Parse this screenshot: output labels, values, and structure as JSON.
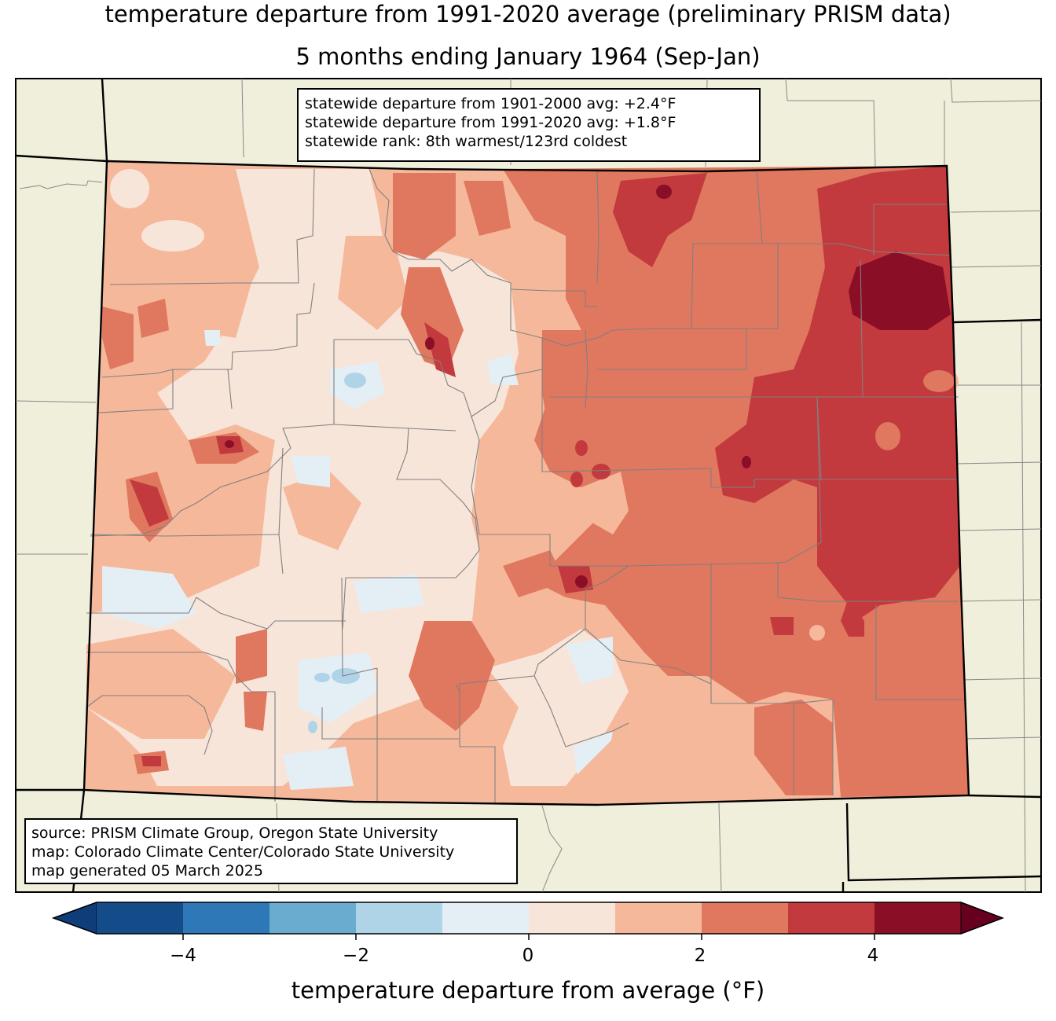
{
  "title_line1": "temperature departure from 1991-2020 average (preliminary PRISM data)",
  "title_line2": "5 months ending January 1964 (Sep-Jan)",
  "stats": {
    "line1": "statewide departure from 1901-2000 avg: +2.4°F",
    "line2": "statewide departure from 1991-2020 avg: +1.8°F",
    "line3": "statewide rank: 8th warmest/123rd coldest"
  },
  "source": {
    "line1": "source: PRISM Climate Group, Oregon State University",
    "line2": "map: Colorado Climate Center/Colorado State University",
    "line3": "map generated 05 March 2025"
  },
  "colorbar": {
    "label": "temperature departure from average (°F)",
    "ticks": [
      "−4",
      "−2",
      "0",
      "2",
      "4"
    ],
    "colors": [
      "#0f3d7a",
      "#144c8a",
      "#2e78b8",
      "#6aacd0",
      "#b0d4e7",
      "#e4eef5",
      "#f8e5da",
      "#f6b89b",
      "#e0775f",
      "#c23a3d",
      "#8b0e27",
      "#67001f"
    ],
    "colors_note_omit": true
  },
  "colors": {
    "background": "#f0efdb",
    "plus_0_1": "#f8e5da",
    "plus_1_2": "#f6b89b",
    "plus_2_3": "#e0775f",
    "plus_3_4": "#c23a3d",
    "plus_4_5": "#8b0e27",
    "minus_0_1": "#e4eef5",
    "minus_1_2": "#b0d4e7"
  }
}
